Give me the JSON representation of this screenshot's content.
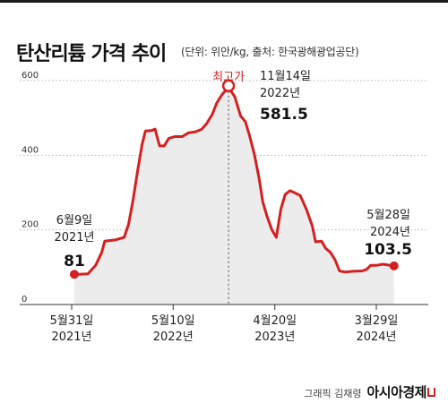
{
  "header": {
    "title": "탄산리튬 가격 추이",
    "subtitle": "(단위: 위안/kg, 출처: 한국광해광업공단)"
  },
  "footer": {
    "credit": "그래픽 김채령",
    "brand": "아시아경제"
  },
  "colors": {
    "line": "#d42020",
    "area": "#ececec",
    "grid": "#b5b5b5",
    "text": "#222222"
  },
  "chart_data": {
    "type": "area",
    "title": "탄산리튬 가격 추이",
    "subtitle": "(단위: 위안/kg, 출처: 한국광해광업공단)",
    "xlabel": "",
    "ylabel": "",
    "ylim": [
      0,
      600
    ],
    "yticks": [
      0,
      200,
      400,
      600
    ],
    "grid": true,
    "x_ticks": [
      {
        "line1": "5월31일",
        "line2": "2021년",
        "date": "2021-05-31"
      },
      {
        "line1": "5월10일",
        "line2": "2022년",
        "date": "2022-05-10"
      },
      {
        "line1": "4월20일",
        "line2": "2023년",
        "date": "2023-04-20"
      },
      {
        "line1": "3월29일",
        "line2": "2024년",
        "date": "2024-03-29"
      }
    ],
    "series": [
      {
        "points": [
          [
            "2021-06-09",
            81
          ],
          [
            "2021-06-25",
            81
          ],
          [
            "2021-07-25",
            82
          ],
          [
            "2021-08-20",
            105
          ],
          [
            "2021-09-10",
            140
          ],
          [
            "2021-09-20",
            170
          ],
          [
            "2021-10-25",
            173
          ],
          [
            "2021-11-25",
            180
          ],
          [
            "2021-12-10",
            215
          ],
          [
            "2021-12-25",
            280
          ],
          [
            "2022-01-10",
            360
          ],
          [
            "2022-01-25",
            430
          ],
          [
            "2022-02-05",
            465
          ],
          [
            "2022-02-25",
            466
          ],
          [
            "2022-03-10",
            470
          ],
          [
            "2022-03-25",
            425
          ],
          [
            "2022-04-10",
            425
          ],
          [
            "2022-04-25",
            445
          ],
          [
            "2022-05-15",
            450
          ],
          [
            "2022-06-10",
            450
          ],
          [
            "2022-07-01",
            460
          ],
          [
            "2022-07-25",
            463
          ],
          [
            "2022-08-15",
            470
          ],
          [
            "2022-09-01",
            485
          ],
          [
            "2022-09-20",
            510
          ],
          [
            "2022-10-05",
            540
          ],
          [
            "2022-10-25",
            565
          ],
          [
            "2022-11-14",
            581.5
          ],
          [
            "2022-12-05",
            557
          ],
          [
            "2022-12-25",
            505
          ],
          [
            "2023-01-10",
            490
          ],
          [
            "2023-01-25",
            450
          ],
          [
            "2023-02-10",
            400
          ],
          [
            "2023-02-25",
            340
          ],
          [
            "2023-03-10",
            275
          ],
          [
            "2023-03-25",
            235
          ],
          [
            "2023-04-10",
            200
          ],
          [
            "2023-04-25",
            180
          ],
          [
            "2023-05-10",
            255
          ],
          [
            "2023-05-25",
            295
          ],
          [
            "2023-06-10",
            305
          ],
          [
            "2023-06-25",
            300
          ],
          [
            "2023-07-15",
            292
          ],
          [
            "2023-08-05",
            255
          ],
          [
            "2023-08-25",
            210
          ],
          [
            "2023-09-05",
            168
          ],
          [
            "2023-09-25",
            170
          ],
          [
            "2023-10-10",
            150
          ],
          [
            "2023-10-25",
            140
          ],
          [
            "2023-11-10",
            120
          ],
          [
            "2023-11-25",
            90
          ],
          [
            "2023-12-15",
            87
          ],
          [
            "2024-01-10",
            89
          ],
          [
            "2024-02-10",
            90
          ],
          [
            "2024-02-25",
            94
          ],
          [
            "2024-03-10",
            105
          ],
          [
            "2024-03-29",
            105
          ],
          [
            "2024-04-20",
            108
          ],
          [
            "2024-05-28",
            103.5
          ]
        ]
      }
    ],
    "annotations": [
      {
        "key": "start",
        "date": "2021-06-09",
        "value": 81,
        "date_line1": "6월9일",
        "date_line2": "2021년",
        "value_text": "81"
      },
      {
        "key": "peak",
        "date": "2022-11-14",
        "value": 581.5,
        "tag": "최고가",
        "date_line1": "11월14일",
        "date_line2": "2022년",
        "value_text": "581.5"
      },
      {
        "key": "end",
        "date": "2024-05-28",
        "value": 103.5,
        "date_line1": "5월28일",
        "date_line2": "2024년",
        "value_text": "103.5"
      }
    ]
  }
}
